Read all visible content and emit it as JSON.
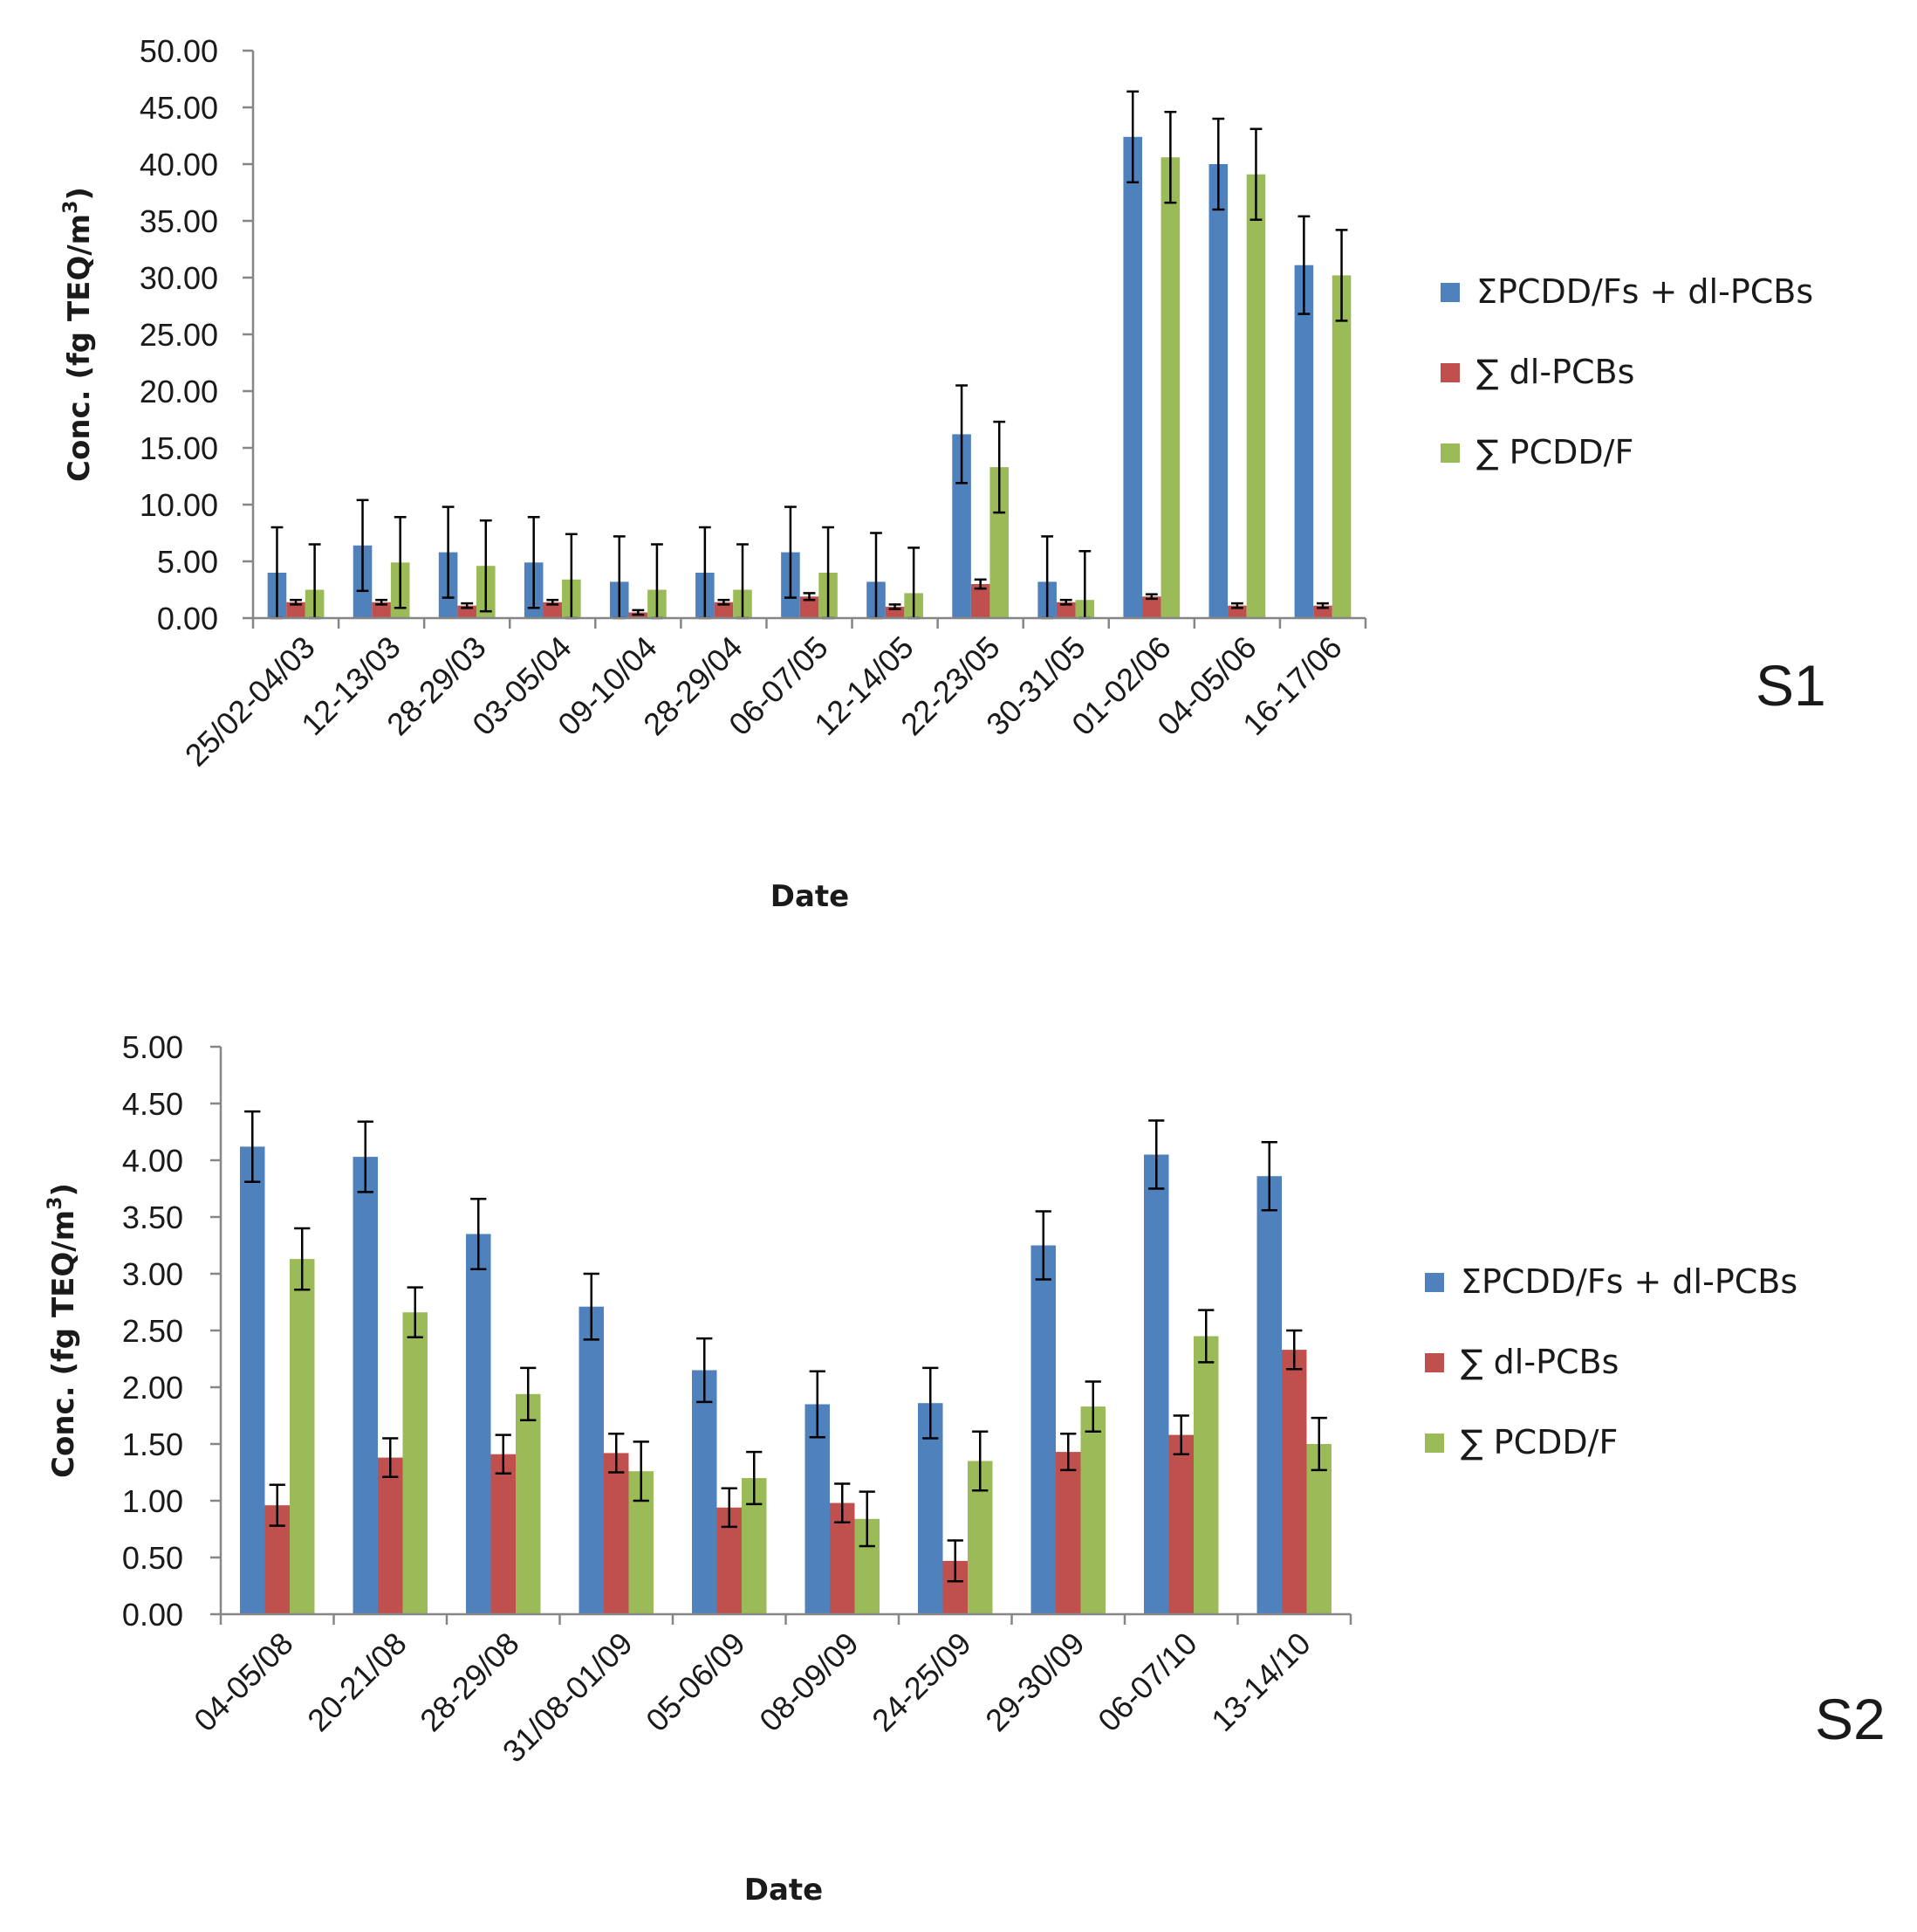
{
  "chart_data": [
    {
      "panel": "S1",
      "type": "bar",
      "xlabel": "Date",
      "ylabel": "Conc. (fg TEQ/m",
      "ylabel_sup": "3",
      "ylabel_close": ")",
      "ylim": [
        0,
        50
      ],
      "ytick_step": 5,
      "ytick_labels": [
        "0.00",
        "5.00",
        "10.00",
        "15.00",
        "20.00",
        "25.00",
        "30.00",
        "35.00",
        "40.00",
        "45.00",
        "50.00"
      ],
      "categories": [
        "25/02-04/03",
        "12-13/03",
        "28-29/03",
        "03-05/04",
        "09-10/04",
        "28-29/04",
        "06-07/05",
        "12-14/05",
        "22-23/05",
        "30-31/05",
        "01-02/06",
        "04-05/06",
        "16-17/06"
      ],
      "series": [
        {
          "name": "ΣPCDD/Fs + dl-PCBs",
          "color": "#4f81bd",
          "values": [
            4.0,
            6.4,
            5.8,
            4.9,
            3.2,
            4.0,
            5.8,
            3.2,
            16.2,
            3.2,
            42.4,
            40.0,
            31.1
          ],
          "errors": [
            4.0,
            4.0,
            4.0,
            4.0,
            4.0,
            4.0,
            4.0,
            4.3,
            4.3,
            4.0,
            4.0,
            4.0,
            4.3
          ]
        },
        {
          "name": "∑ dl-PCBs",
          "color": "#c0504d",
          "values": [
            1.4,
            1.4,
            1.1,
            1.4,
            0.5,
            1.4,
            1.9,
            1.0,
            3.0,
            1.4,
            1.9,
            1.1,
            1.1
          ],
          "errors": [
            0.2,
            0.2,
            0.2,
            0.2,
            0.2,
            0.2,
            0.3,
            0.2,
            0.4,
            0.2,
            0.2,
            0.2,
            0.2
          ]
        },
        {
          "name": "∑ PCDD/F",
          "color": "#9bbb59",
          "values": [
            2.5,
            4.9,
            4.6,
            3.4,
            2.5,
            2.5,
            4.0,
            2.2,
            13.3,
            1.6,
            40.6,
            39.1,
            30.2
          ],
          "errors": [
            4.0,
            4.0,
            4.0,
            4.0,
            4.0,
            4.0,
            4.0,
            4.0,
            4.0,
            4.3,
            4.0,
            4.0,
            4.0
          ]
        }
      ]
    },
    {
      "panel": "S2",
      "type": "bar",
      "xlabel": "Date",
      "ylabel": "Conc. (fg TEQ/m",
      "ylabel_sup": "3",
      "ylabel_close": ")",
      "ylim": [
        0,
        5
      ],
      "ytick_step": 0.5,
      "ytick_labels": [
        "0.00",
        "0.50",
        "1.00",
        "1.50",
        "2.00",
        "2.50",
        "3.00",
        "3.50",
        "4.00",
        "4.50",
        "5.00"
      ],
      "categories": [
        "04-05/08",
        "20-21/08",
        "28-29/08",
        "31/08-01/09",
        "05-06/09",
        "08-09/09",
        "24-25/09",
        "29-30/09",
        "06-07/10",
        "13-14/10"
      ],
      "series": [
        {
          "name": "ΣPCDD/Fs + dl-PCBs",
          "color": "#4f81bd",
          "values": [
            4.12,
            4.03,
            3.35,
            2.71,
            2.15,
            1.85,
            1.86,
            3.25,
            4.05,
            3.86
          ],
          "errors": [
            0.31,
            0.31,
            0.31,
            0.29,
            0.28,
            0.29,
            0.31,
            0.3,
            0.3,
            0.3
          ]
        },
        {
          "name": "∑ dl-PCBs",
          "color": "#c0504d",
          "values": [
            0.96,
            1.38,
            1.41,
            1.42,
            0.94,
            0.98,
            0.47,
            1.43,
            1.58,
            2.33
          ],
          "errors": [
            0.18,
            0.17,
            0.17,
            0.17,
            0.17,
            0.17,
            0.18,
            0.16,
            0.17,
            0.17
          ]
        },
        {
          "name": "∑ PCDD/F",
          "color": "#9bbb59",
          "values": [
            3.13,
            2.66,
            1.94,
            1.26,
            1.2,
            0.84,
            1.35,
            1.83,
            2.45,
            1.5
          ],
          "errors": [
            0.27,
            0.22,
            0.23,
            0.26,
            0.23,
            0.24,
            0.26,
            0.22,
            0.23,
            0.23
          ]
        }
      ]
    }
  ]
}
